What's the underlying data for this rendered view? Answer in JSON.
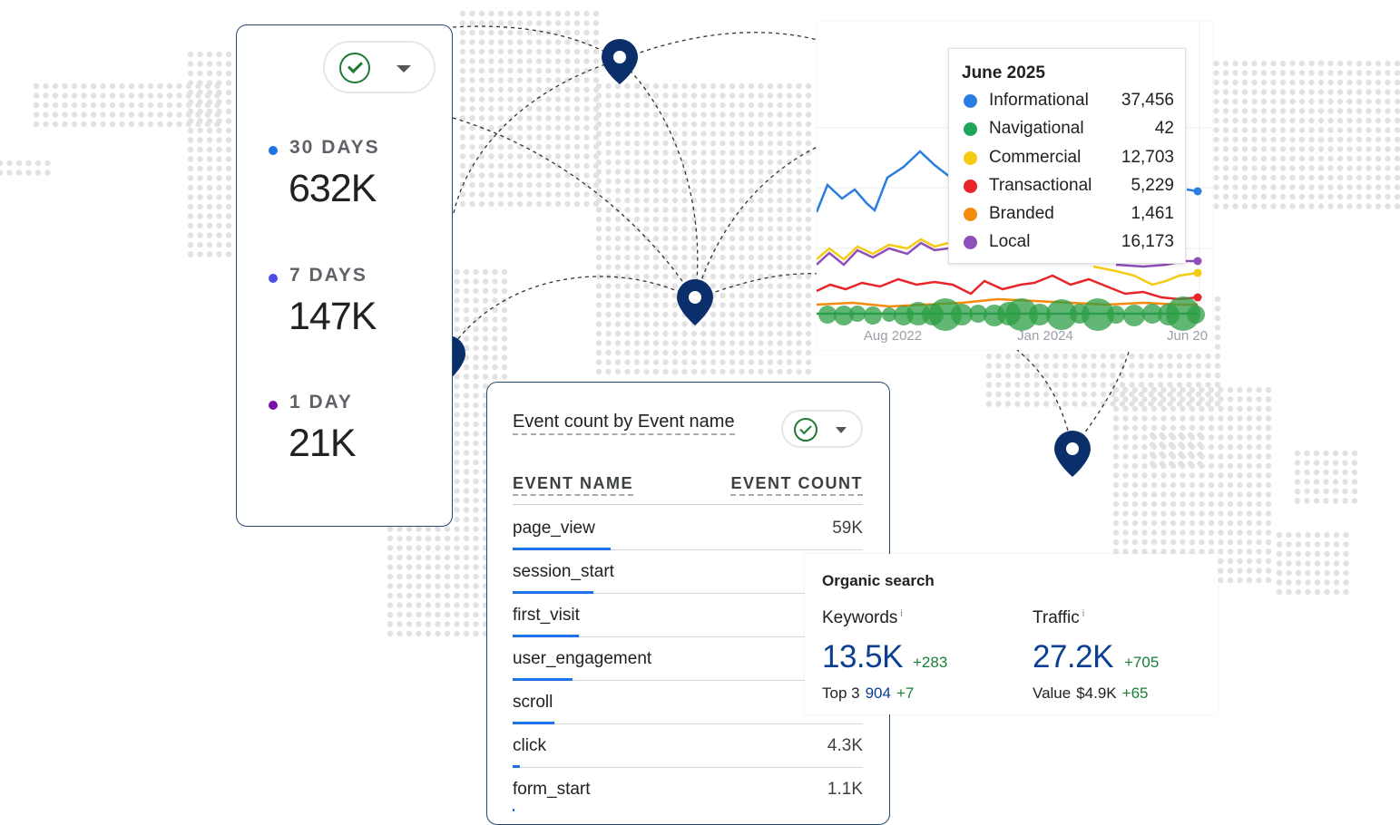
{
  "realtime": {
    "period_label_30": "30 DAYS",
    "value_30": "632K",
    "period_label_7": "7 DAYS",
    "value_7": "147K",
    "period_label_1": "1 DAY",
    "value_1": "21K",
    "dot_colors": [
      "#1a73e8",
      "#4b4be8",
      "#7b0fa8"
    ]
  },
  "trend": {
    "tooltip_title": "June 2025",
    "tooltip_rows": [
      {
        "name": "Informational",
        "value": "37,456",
        "color": "#2b7de1"
      },
      {
        "name": "Navigational",
        "value": "42",
        "color": "#1fa55a"
      },
      {
        "name": "Commercial",
        "value": "12,703",
        "color": "#f4cc14"
      },
      {
        "name": "Transactional",
        "value": "5,229",
        "color": "#e8262a"
      },
      {
        "name": "Branded",
        "value": "1,461",
        "color": "#f58a0c"
      },
      {
        "name": "Local",
        "value": "16,173",
        "color": "#8e4fb8"
      }
    ],
    "x_ticks": [
      "Aug 2022",
      "Jan 2024",
      "Jun 20"
    ]
  },
  "events": {
    "title": "Event count by Event name",
    "col_name": "EVENT NAME",
    "col_count": "EVENT COUNT",
    "rows": [
      {
        "name": "page_view",
        "count": "59K",
        "share": 0.28
      },
      {
        "name": "session_start",
        "count": "",
        "share": 0.23
      },
      {
        "name": "first_visit",
        "count": "",
        "share": 0.19
      },
      {
        "name": "user_engagement",
        "count": "",
        "share": 0.17
      },
      {
        "name": "scroll",
        "count": "",
        "share": 0.12
      },
      {
        "name": "click",
        "count": "4.3K",
        "share": 0.02
      },
      {
        "name": "form_start",
        "count": "1.1K",
        "share": 0.005
      }
    ]
  },
  "organic": {
    "title": "Organic search",
    "keywords_label": "Keywords",
    "keywords_value": "13.5K",
    "keywords_delta": "+283",
    "top3_label": "Top 3",
    "top3_value": "904",
    "top3_delta": "+7",
    "traffic_label": "Traffic",
    "traffic_value": "27.2K",
    "traffic_delta": "+705",
    "value_label": "Value",
    "value_value": "$4.9K",
    "value_delta": "+65",
    "info_marker": "i"
  }
}
